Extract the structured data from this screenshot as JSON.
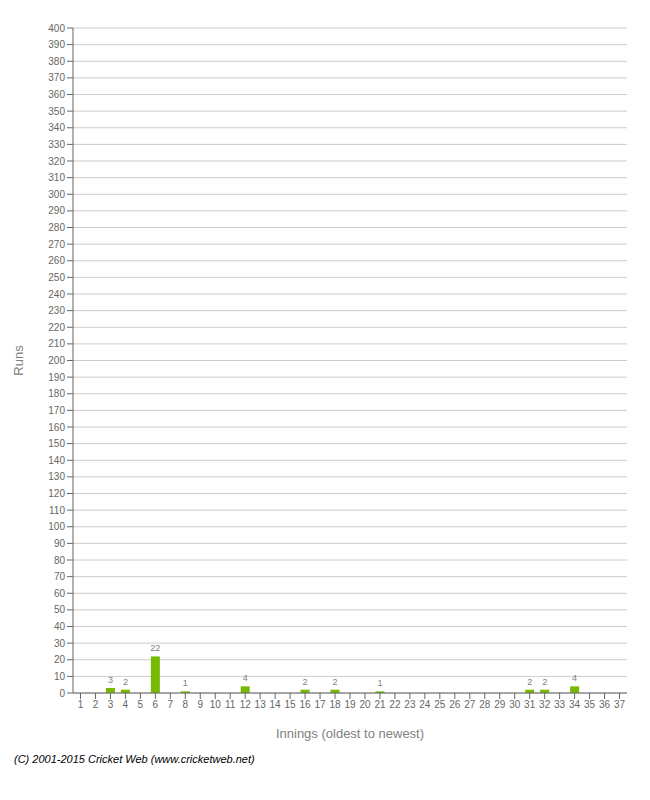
{
  "chart_data": {
    "type": "bar",
    "xlabel": "Innings (oldest to newest)",
    "ylabel": "Runs",
    "categories": [
      "1",
      "2",
      "3",
      "4",
      "5",
      "6",
      "7",
      "8",
      "9",
      "10",
      "11",
      "12",
      "13",
      "14",
      "15",
      "16",
      "17",
      "18",
      "19",
      "20",
      "21",
      "22",
      "23",
      "24",
      "25",
      "26",
      "27",
      "28",
      "29",
      "30",
      "31",
      "32",
      "33",
      "34",
      "35",
      "36",
      "37"
    ],
    "values": [
      0,
      0,
      3,
      2,
      0,
      22,
      0,
      1,
      0,
      0,
      0,
      4,
      0,
      0,
      0,
      2,
      0,
      2,
      0,
      0,
      1,
      0,
      0,
      0,
      0,
      0,
      0,
      0,
      0,
      0,
      2,
      2,
      0,
      4,
      0,
      0,
      0
    ],
    "color": "#77bb00",
    "ylim": [
      0,
      400
    ],
    "yticks": [
      0,
      10,
      20,
      30,
      40,
      50,
      60,
      70,
      80,
      90,
      100,
      110,
      120,
      130,
      140,
      150,
      160,
      170,
      180,
      190,
      200,
      210,
      220,
      230,
      240,
      250,
      260,
      270,
      280,
      290,
      300,
      310,
      320,
      330,
      340,
      350,
      360,
      370,
      380,
      390,
      400
    ],
    "grid": true,
    "data_labels": true,
    "annotations": [
      "(C) 2001-2015 Cricket Web (www.cricketweb.net)"
    ]
  }
}
